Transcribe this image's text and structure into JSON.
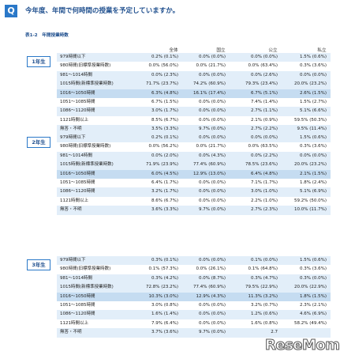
{
  "header": {
    "q_label": "Q",
    "question": "今年度、年間で何時間の授業を予定していますか。",
    "subtitle": "表1-2　年間授業時数"
  },
  "columns": [
    "全体",
    "国立",
    "公立",
    "私立"
  ],
  "sections": [
    {
      "grade": "1年生",
      "rows": [
        {
          "label": "979時間以下",
          "values": [
            "0.2% (0.1%)",
            "0.0% (0.0%)",
            "0.0% (0.0%)",
            "1.5% (0.6%)"
          ]
        },
        {
          "label": "980時間(旧標準授業時数)",
          "values": [
            "0.0% (56.0%)",
            "0.0% (21.7%)",
            "0.0% (63.4%)",
            "0.3% (3.6%)"
          ]
        },
        {
          "label": "981～1014時間",
          "values": [
            "0.0% (2.3%)",
            "0.0% (0.0%)",
            "0.0% (2.6%)",
            "0.0% (0.0%)"
          ]
        },
        {
          "label": "1015時間(新標準授業時数)",
          "values": [
            "71.7% (23.7%)",
            "74.2% (60.9%)",
            "79.3% (23.4%)",
            "20.0% (23.2%)"
          ]
        },
        {
          "label": "1016～1050時間",
          "values": [
            "6.3% (4.8%)",
            "16.1% (17.4%)",
            "6.7% (5.1%)",
            "2.6% (1.5%)"
          ]
        },
        {
          "label": "1051～1085時間",
          "values": [
            "6.7% (1.5%)",
            "0.0% (0.0%)",
            "7.4% (1.4%)",
            "1.5% (2.7%)"
          ]
        },
        {
          "label": "1086～1120時間",
          "values": [
            "3.0% (1.7%)",
            "0.0% (0.0%)",
            "2.7% (1.1%)",
            "5.1% (6.6%)"
          ]
        },
        {
          "label": "1121時間以上",
          "values": [
            "8.5% (6.7%)",
            "0.0% (0.0%)",
            "2.1% (0.9%)",
            "59.5% (50.3%)"
          ]
        },
        {
          "label": "無答・不明",
          "values": [
            "3.5% (3.3%)",
            "9.7% (0.0%)",
            "2.7% (2.2%)",
            "9.5% (11.4%)"
          ]
        }
      ]
    },
    {
      "grade": "2年生",
      "rows": [
        {
          "label": "979時間以下",
          "values": [
            "0.2% (0.1%)",
            "0.0% (0.0%)",
            "0.0% (0.0%)",
            "1.5% (0.6%)"
          ]
        },
        {
          "label": "980時間(旧標準授業時数)",
          "values": [
            "0.0% (56.2%)",
            "0.0% (21.7%)",
            "0.0% (63.5%)",
            "0.3% (3.6%)"
          ]
        },
        {
          "label": "981～1014時間",
          "values": [
            "0.0% (2.0%)",
            "0.0% (4.3%)",
            "0.0% (2.2%)",
            "0.0% (0.0%)"
          ]
        },
        {
          "label": "1015時間(新標準授業時数)",
          "values": [
            "71.9% (23.9%)",
            "77.4% (60.9%)",
            "78.5% (23.6%)",
            "20.0% (23.2%)"
          ]
        },
        {
          "label": "1016～1050時間",
          "values": [
            "6.0% (4.5%)",
            "12.9% (13.0%)",
            "6.4% (4.8%)",
            "2.1% (1.5%)"
          ]
        },
        {
          "label": "1051～1085時間",
          "values": [
            "6.4% (1.7%)",
            "0.0% (0.0%)",
            "7.1% (1.7%)",
            "1.8% (2.4%)"
          ]
        },
        {
          "label": "1086～1120時間",
          "values": [
            "3.2% (1.7%)",
            "0.0% (0.0%)",
            "3.0% (1.0%)",
            "5.1% (6.9%)"
          ]
        },
        {
          "label": "1121時間以上",
          "values": [
            "8.6% (6.7%)",
            "0.0% (0.0%)",
            "2.2% (1.0%)",
            "59.2% (50.0%)"
          ]
        },
        {
          "label": "無答・不明",
          "values": [
            "3.6% (3.3%)",
            "9.7% (0.0%)",
            "2.7% (2.3%)",
            "10.0% (11.7%)"
          ]
        }
      ]
    },
    {
      "grade": "3年生",
      "rows": [
        {
          "label": "979時間以下",
          "values": [
            "0.3% (0.1%)",
            "0.0% (0.0%)",
            "0.1% (0.0%)",
            "1.5% (0.6%)"
          ]
        },
        {
          "label": "980時間(旧標準授業時数)",
          "values": [
            "0.1% (57.3%)",
            "0.0% (26.1%)",
            "0.1% (64.8%)",
            "0.3% (3.6%)"
          ]
        },
        {
          "label": "981～1014時間",
          "values": [
            "0.3% (4.2%)",
            "0.0% (8.7%)",
            "0.3% (4.7%)",
            "0.3% (0.0%)"
          ]
        },
        {
          "label": "1015時間(新標準授業時数)",
          "values": [
            "72.8% (23.2%)",
            "77.4% (60.9%)",
            "79.5% (22.9%)",
            "20.0% (22.9%)"
          ]
        },
        {
          "label": "1016～1050時間",
          "values": [
            "10.3% (3.0%)",
            "12.9% (4.3%)",
            "11.3% (3.2%)",
            "1.8% (1.5%)"
          ]
        },
        {
          "label": "1051～1085時間",
          "values": [
            "3.0% (0.8%)",
            "0.0% (0.0%)",
            "3.2% (0.7%)",
            "2.3% (2.1%)"
          ]
        },
        {
          "label": "1086～1120時間",
          "values": [
            "1.6% (1.4%)",
            "0.0% (0.0%)",
            "1.2% (0.6%)",
            "4.6% (6.9%)"
          ]
        },
        {
          "label": "1121時間以上",
          "values": [
            "7.9% (6.4%)",
            "0.0% (0.0%)",
            "1.6% (0.8%)",
            "58.2% (49.4%)"
          ]
        },
        {
          "label": "無答・不明",
          "values": [
            "3.7% (3.6%)",
            "9.7% (0.0%)",
            "2.7",
            ""
          ]
        }
      ]
    }
  ],
  "logo": "ReseMom"
}
